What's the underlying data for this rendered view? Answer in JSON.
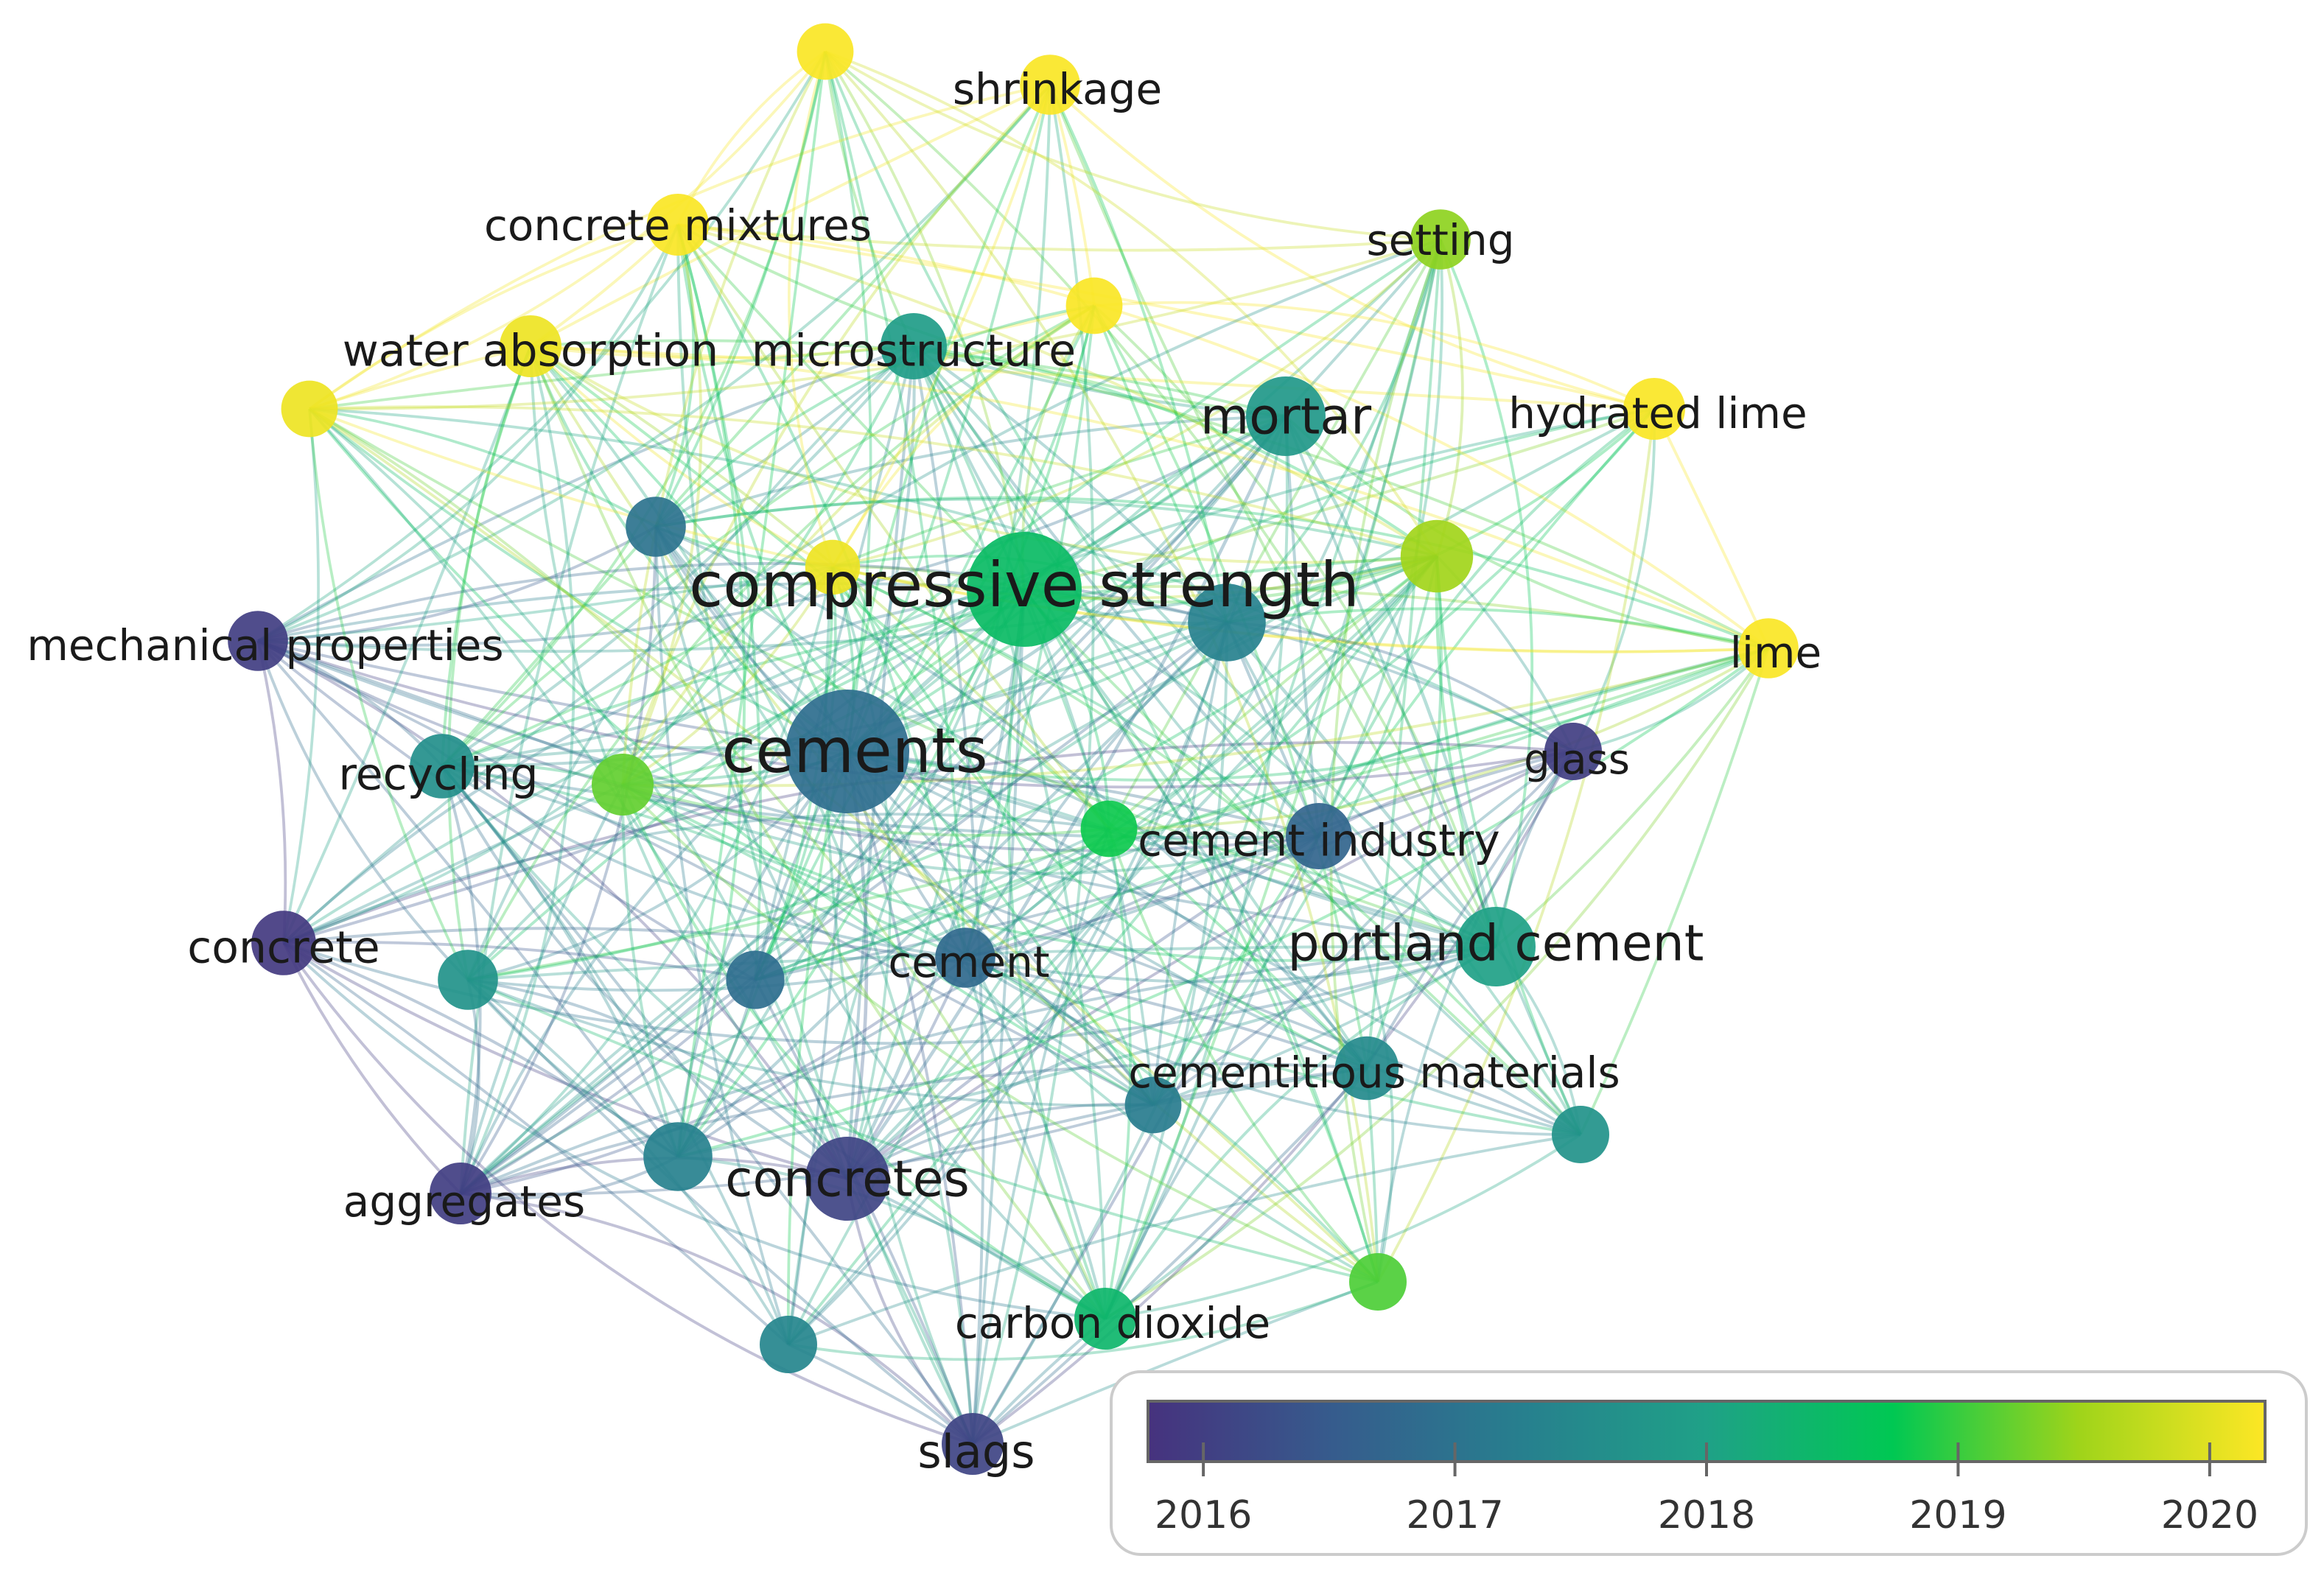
{
  "network": {
    "nodes": [
      {
        "id": "cements",
        "label": "cements",
        "year": 2016.9,
        "weight": 1.0
      },
      {
        "id": "compressive-strength",
        "label": "compressive strength",
        "year": 2018.5,
        "weight": 0.9
      },
      {
        "id": "concretes",
        "label": "concretes",
        "year": 2016.1,
        "weight": 0.55
      },
      {
        "id": "portland-cement",
        "label": "portland cement",
        "year": 2018.0,
        "weight": 0.5
      },
      {
        "id": "mortar",
        "label": "mortar",
        "year": 2017.8,
        "weight": 0.5
      },
      {
        "id": "cement-industry",
        "label": "cement industry",
        "year": 2016.7,
        "weight": 0.35
      },
      {
        "id": "microstructure",
        "label": "microstructure",
        "year": 2017.9,
        "weight": 0.35
      },
      {
        "id": "water-absorption",
        "label": "water absorption",
        "year": 2020.1,
        "weight": 0.3
      },
      {
        "id": "concrete-mixtures",
        "label": "concrete mixtures",
        "year": 2020.2,
        "weight": 0.3
      },
      {
        "id": "shrinkage",
        "label": "shrinkage",
        "year": 2020.2,
        "weight": 0.28
      },
      {
        "id": "setting",
        "label": "setting",
        "year": 2019.4,
        "weight": 0.28
      },
      {
        "id": "hydrated-lime",
        "label": "hydrated lime",
        "year": 2020.2,
        "weight": 0.3
      },
      {
        "id": "lime",
        "label": "lime",
        "year": 2020.2,
        "weight": 0.28
      },
      {
        "id": "glass",
        "label": "glass",
        "year": 2016.0,
        "weight": 0.25
      },
      {
        "id": "mechanical-properties",
        "label": "mechanical properties",
        "year": 2016.0,
        "weight": 0.28
      },
      {
        "id": "recycling",
        "label": "recycling",
        "year": 2017.6,
        "weight": 0.33
      },
      {
        "id": "concrete",
        "label": "concrete",
        "year": 2015.9,
        "weight": 0.33
      },
      {
        "id": "cement",
        "label": "cement",
        "year": 2016.8,
        "weight": 0.28
      },
      {
        "id": "cementitious-materials",
        "label": "cementitious materials",
        "year": 2017.5,
        "weight": 0.32
      },
      {
        "id": "aggregates",
        "label": "aggregates",
        "year": 2016.0,
        "weight": 0.3
      },
      {
        "id": "carbon-dioxide",
        "label": "carbon dioxide",
        "year": 2018.4,
        "weight": 0.3
      },
      {
        "id": "slags",
        "label": "slags",
        "year": 2016.1,
        "weight": 0.3
      },
      {
        "id": "n1",
        "label": "",
        "year": 2020.2,
        "weight": 0.24
      },
      {
        "id": "n2",
        "label": "",
        "year": 2020.1,
        "weight": 0.24
      },
      {
        "id": "n3",
        "label": "",
        "year": 2020.2,
        "weight": 0.24
      },
      {
        "id": "n4",
        "label": "",
        "year": 2020.1,
        "weight": 0.22
      },
      {
        "id": "n5",
        "label": "",
        "year": 2017.0,
        "weight": 0.28
      },
      {
        "id": "n6",
        "label": "",
        "year": 2019.5,
        "weight": 0.42
      },
      {
        "id": "n7",
        "label": "",
        "year": 2017.3,
        "weight": 0.48
      },
      {
        "id": "n8",
        "label": "",
        "year": 2019.2,
        "weight": 0.3
      },
      {
        "id": "n9",
        "label": "",
        "year": 2018.8,
        "weight": 0.24
      },
      {
        "id": "n10",
        "label": "",
        "year": 2017.7,
        "weight": 0.28
      },
      {
        "id": "n11",
        "label": "",
        "year": 2016.9,
        "weight": 0.26
      },
      {
        "id": "n12",
        "label": "",
        "year": 2017.3,
        "weight": 0.38
      },
      {
        "id": "n13",
        "label": "",
        "year": 2017.2,
        "weight": 0.24
      },
      {
        "id": "n14",
        "label": "",
        "year": 2017.7,
        "weight": 0.25
      },
      {
        "id": "n15",
        "label": "",
        "year": 2019.1,
        "weight": 0.25
      },
      {
        "id": "n16",
        "label": "",
        "year": 2017.4,
        "weight": 0.25
      }
    ]
  },
  "legend": {
    "ticks": [
      "2016",
      "2017",
      "2018",
      "2019",
      "2020"
    ],
    "year_min": 2015.78,
    "year_max": 2020.22,
    "gradient_colors": [
      "#46327e",
      "#365c8d",
      "#277f8e",
      "#1fa187",
      "#00c853",
      "#9fd41a",
      "#fde725"
    ]
  }
}
